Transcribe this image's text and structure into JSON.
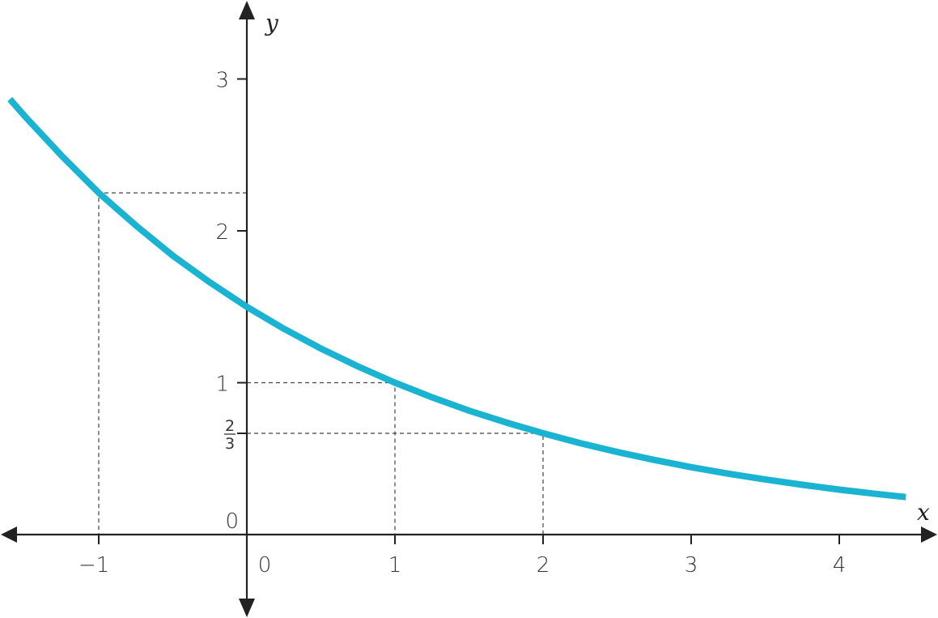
{
  "chart_data": {
    "type": "line",
    "xlabel": "x",
    "ylabel": "y",
    "xlim": [
      -1.65,
      4.6
    ],
    "ylim": [
      -0.5,
      3.55
    ],
    "x_ticks": [
      {
        "value": -1,
        "label": "−1"
      },
      {
        "value": 0,
        "label": "0"
      },
      {
        "value": 1,
        "label": "1"
      },
      {
        "value": 2,
        "label": "2"
      },
      {
        "value": 3,
        "label": "3"
      },
      {
        "value": 4,
        "label": "4"
      }
    ],
    "y_ticks": [
      {
        "value": 0,
        "label": "0"
      },
      {
        "value": 1,
        "label": "1"
      },
      {
        "value": 2,
        "label": "2"
      },
      {
        "value": 3,
        "label": "3"
      }
    ],
    "y_fraction_tick": {
      "value": 0.6667,
      "numerator": "2",
      "denominator": "3"
    },
    "series": [
      {
        "function": "1.5*(2/3)^x",
        "color": "#1ab4d2",
        "x": [
          -1.6,
          -1.5,
          -1.25,
          -1,
          -0.75,
          -0.5,
          -0.25,
          0,
          0.25,
          0.5,
          0.75,
          1,
          1.25,
          1.5,
          1.75,
          2,
          2.25,
          2.5,
          2.75,
          3,
          3.25,
          3.5,
          3.75,
          4,
          4.25,
          4.45
        ],
        "y": [
          2.867,
          2.756,
          2.494,
          2.25,
          2.036,
          1.837,
          1.661,
          1.5,
          1.355,
          1.225,
          1.107,
          1.0,
          0.904,
          0.816,
          0.738,
          0.667,
          0.602,
          0.544,
          0.492,
          0.444,
          0.401,
          0.363,
          0.328,
          0.296,
          0.268,
          0.247
        ]
      }
    ],
    "reference_points": [
      {
        "x": -1,
        "y": 2.25
      },
      {
        "x": 1,
        "y": 1
      },
      {
        "x": 2,
        "y": 0.6667
      }
    ],
    "grid": false,
    "legend": "none"
  }
}
